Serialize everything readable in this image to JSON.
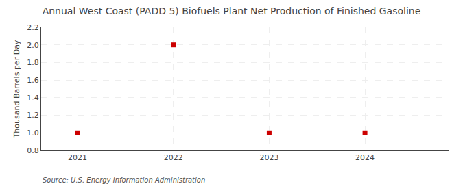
{
  "chart_data": {
    "type": "scatter",
    "title": "Annual West Coast (PADD 5) Biofuels Plant Net Production of Finished Gasoline",
    "ylabel": "Thousand Barrels per Day",
    "annotations": [
      "Source: U.S. Energy Information Administration"
    ],
    "x": [
      2021,
      2022,
      2023,
      2024
    ],
    "values": [
      1.0,
      2.0,
      1.0,
      1.0
    ],
    "color": "#cc0000",
    "marker": "square",
    "xlim": [
      2020.62,
      2024.88
    ],
    "ylim": [
      0.8,
      2.2
    ],
    "xticks": [
      2021,
      2022,
      2023,
      2024
    ],
    "yticks": [
      0.8,
      {
        "value": 1.0,
        "label": "1.0"
      },
      1.2,
      1.4,
      1.6,
      1.8,
      {
        "value": 2.0,
        "label": "2.0"
      },
      2.2
    ],
    "grid": true
  }
}
